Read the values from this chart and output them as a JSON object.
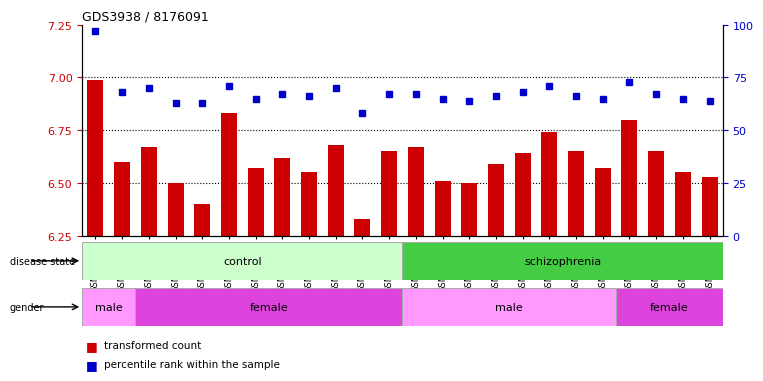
{
  "title": "GDS3938 / 8176091",
  "samples": [
    "GSM630785",
    "GSM630786",
    "GSM630787",
    "GSM630788",
    "GSM630789",
    "GSM630790",
    "GSM630791",
    "GSM630792",
    "GSM630793",
    "GSM630794",
    "GSM630795",
    "GSM630796",
    "GSM630797",
    "GSM630798",
    "GSM630799",
    "GSM630803",
    "GSM630804",
    "GSM630805",
    "GSM630806",
    "GSM630807",
    "GSM630808",
    "GSM630800",
    "GSM630801",
    "GSM630802"
  ],
  "bar_heights": [
    6.99,
    6.6,
    6.67,
    6.5,
    6.4,
    6.83,
    6.57,
    6.62,
    6.55,
    6.68,
    6.33,
    6.65,
    6.67,
    6.51,
    6.5,
    6.59,
    6.64,
    6.74,
    6.65,
    6.57,
    6.8,
    6.65,
    6.55,
    6.53
  ],
  "percentile_ranks": [
    97,
    68,
    70,
    63,
    63,
    71,
    65,
    67,
    66,
    70,
    58,
    67,
    67,
    65,
    64,
    66,
    68,
    71,
    66,
    65,
    73,
    67,
    65,
    64
  ],
  "ylim_left": [
    6.25,
    7.25
  ],
  "ylim_right": [
    0,
    100
  ],
  "yticks_left": [
    6.25,
    6.5,
    6.75,
    7.0,
    7.25
  ],
  "yticks_right": [
    0,
    25,
    50,
    75,
    100
  ],
  "bar_color": "#cc0000",
  "dot_color": "#0000cc",
  "control_color_light": "#ccffcc",
  "control_color_dark": "#44cc44",
  "male_color_light": "#ff99ff",
  "male_color_dark": "#dd44dd",
  "female_color": "#cc44cc",
  "dotted_line_color": "#000000",
  "background_color": "#ffffff",
  "gender_groups": [
    {
      "label": "male",
      "start": 0,
      "end": 1
    },
    {
      "label": "female",
      "start": 2,
      "end": 11
    },
    {
      "label": "male",
      "start": 12,
      "end": 19
    },
    {
      "label": "female",
      "start": 20,
      "end": 23
    }
  ]
}
